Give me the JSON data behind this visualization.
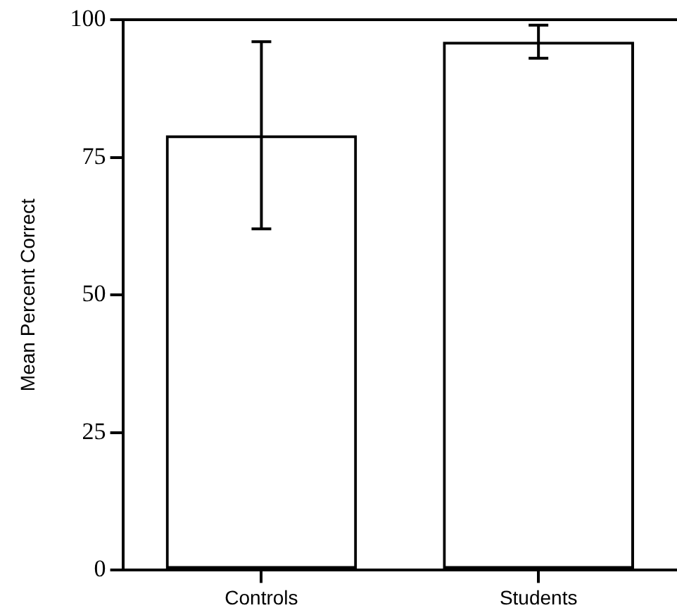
{
  "chart_data": {
    "type": "bar",
    "ylabel": "Mean Percent Correct",
    "categories": [
      "Controls",
      "Students"
    ],
    "values": [
      79,
      96
    ],
    "errors": [
      17,
      3
    ],
    "color": "#000000",
    "ylim": [
      0,
      100
    ],
    "yticks": [
      0,
      25,
      50,
      75,
      100
    ],
    "grid": false,
    "legend": false
  }
}
